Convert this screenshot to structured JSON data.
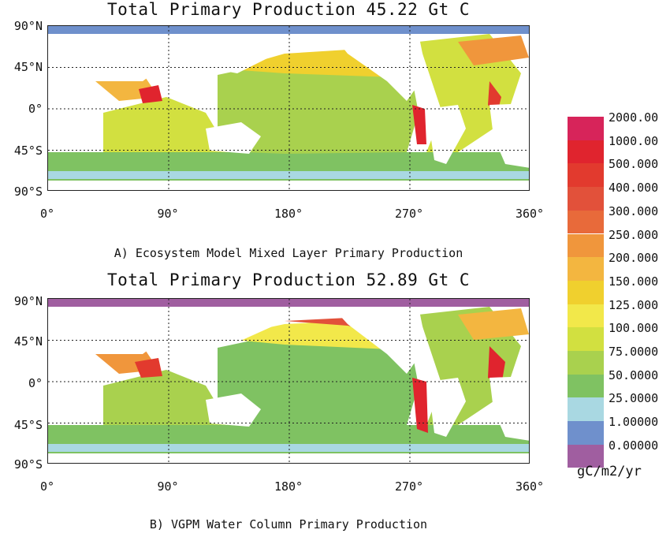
{
  "chart_data": [
    {
      "type": "heatmap",
      "title": "Total Primary Production 45.22 Gt C",
      "caption": "A) Ecosystem Model Mixed Layer Primary Production",
      "x_ticks": [
        "0°",
        "90°",
        "180°",
        "270°",
        "360°"
      ],
      "y_ticks": [
        "90°N",
        "45°N",
        "0°",
        "45°S",
        "90°S"
      ],
      "xlim": [
        0,
        360
      ],
      "ylim": [
        -90,
        90
      ],
      "grid": true,
      "total_gt_c": 45.22
    },
    {
      "type": "heatmap",
      "title": "Total Primary Production 52.89 Gt C",
      "caption": "B) VGPM Water Column Primary Production",
      "x_ticks": [
        "0°",
        "90°",
        "180°",
        "270°",
        "360°"
      ],
      "y_ticks": [
        "90°N",
        "45°N",
        "0°",
        "45°S",
        "90°S"
      ],
      "xlim": [
        0,
        360
      ],
      "ylim": [
        -90,
        90
      ],
      "grid": true,
      "total_gt_c": 52.89
    }
  ],
  "colorbar": {
    "levels": [
      "2000.00",
      "1000.00",
      "500.000",
      "400.000",
      "300.000",
      "250.000",
      "200.000",
      "150.000",
      "125.000",
      "100.000",
      "75.0000",
      "50.0000",
      "25.0000",
      "1.00000",
      "0.00000"
    ],
    "colors": [
      "#d7245a",
      "#e0242e",
      "#e23a2e",
      "#e2513a",
      "#e86a3a",
      "#f0963c",
      "#f3b640",
      "#f0d02e",
      "#f2e84a",
      "#d2e040",
      "#a9d14e",
      "#7fc262",
      "#a9d8e2",
      "#6f90cc",
      "#a05ea0"
    ],
    "units": "gC/m2/yr",
    "placement": "right"
  }
}
